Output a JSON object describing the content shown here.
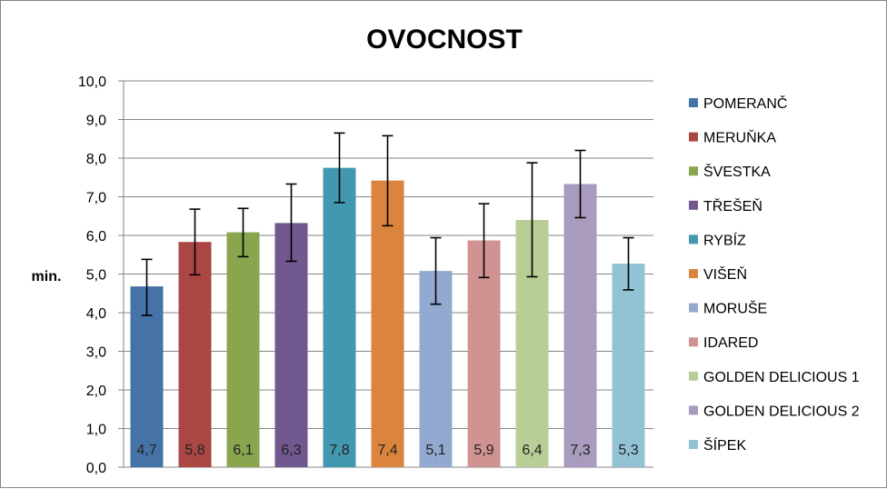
{
  "chart_data": {
    "type": "bar",
    "title": "OVOCNOST",
    "ylabel": "min.",
    "xlabel": "",
    "ylim": [
      0,
      10
    ],
    "ytick_step": 1,
    "yticks": [
      "0,0",
      "1,0",
      "2,0",
      "3,0",
      "4,0",
      "5,0",
      "6,0",
      "7,0",
      "8,0",
      "9,0",
      "10,0"
    ],
    "grid": true,
    "legend_position": "right",
    "series": [
      {
        "name": "POMERANČ",
        "value": 4.68,
        "label": "4,7",
        "error": [
          3.93,
          5.38
        ],
        "color": "#4573A7"
      },
      {
        "name": "MERUŇKA",
        "value": 5.83,
        "label": "5,8",
        "error": [
          4.98,
          6.68
        ],
        "color": "#AA4644"
      },
      {
        "name": "ŠVESTKA",
        "value": 6.08,
        "label": "6,1",
        "error": [
          5.45,
          6.7
        ],
        "color": "#89A54E"
      },
      {
        "name": "TŘEŠEŇ",
        "value": 6.32,
        "label": "6,3",
        "error": [
          5.33,
          7.33
        ],
        "color": "#71588F"
      },
      {
        "name": "RYBÍZ",
        "value": 7.75,
        "label": "7,8",
        "error": [
          6.85,
          8.65
        ],
        "color": "#4298AF"
      },
      {
        "name": "VIŠEŇ",
        "value": 7.42,
        "label": "7,4",
        "error": [
          6.25,
          8.58
        ],
        "color": "#DB843D"
      },
      {
        "name": "MORUŠE",
        "value": 5.08,
        "label": "5,1",
        "error": [
          4.22,
          5.94
        ],
        "color": "#93A9CF"
      },
      {
        "name": "IDARED",
        "value": 5.87,
        "label": "5,9",
        "error": [
          4.91,
          6.82
        ],
        "color": "#D19392"
      },
      {
        "name": "GOLDEN DELICIOUS 1",
        "value": 6.4,
        "label": "6,4",
        "error": [
          4.93,
          7.88
        ],
        "color": "#B9CD96"
      },
      {
        "name": "GOLDEN DELICIOUS 2",
        "value": 7.33,
        "label": "7,3",
        "error": [
          6.46,
          8.2
        ],
        "color": "#A99BBD"
      },
      {
        "name": "ŠÍPEK",
        "value": 5.27,
        "label": "5,3",
        "error": [
          4.59,
          5.94
        ],
        "color": "#92C3D5"
      }
    ]
  }
}
